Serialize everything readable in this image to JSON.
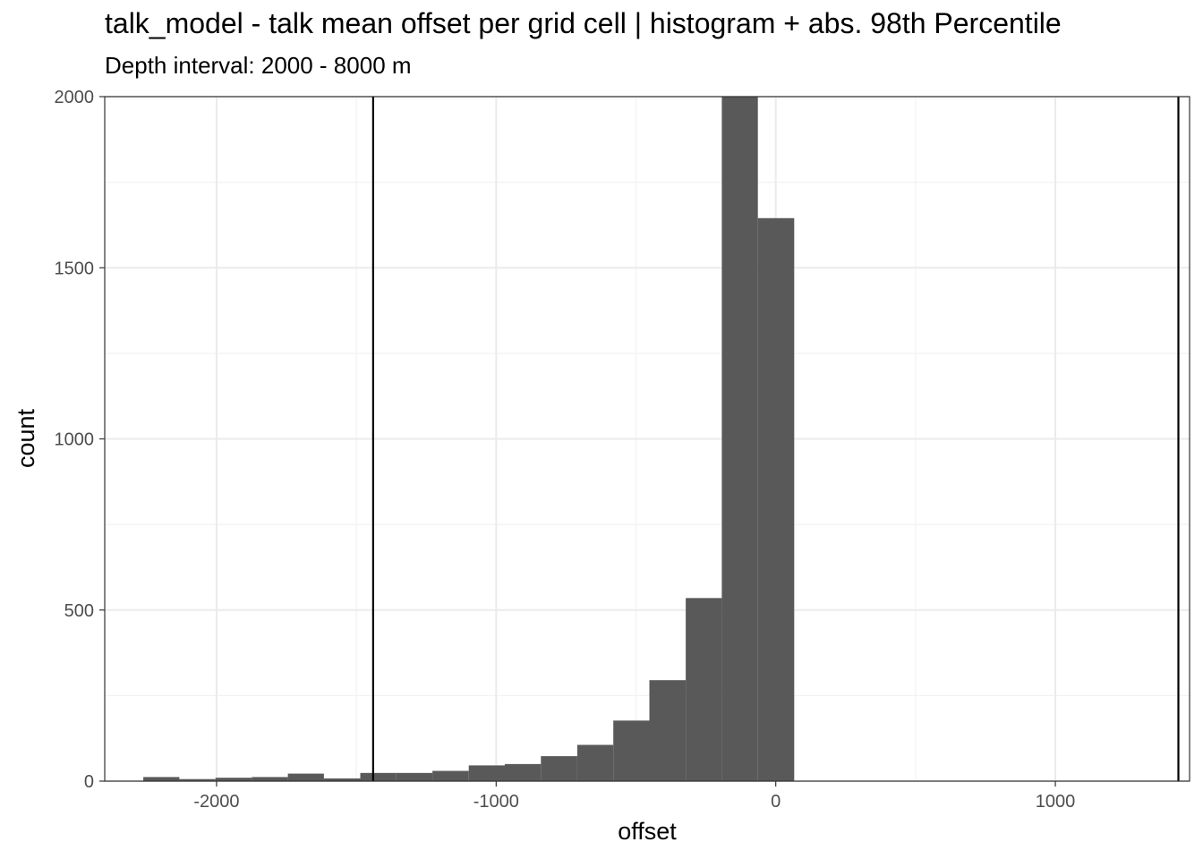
{
  "chart_data": {
    "type": "bar",
    "title": "talk_model  -  talk mean offset per grid cell | histogram + abs. 98th Percentile",
    "subtitle": "Depth interval: 2000 - 8000 m",
    "xlabel": "offset",
    "ylabel": "count",
    "xlim": [
      -2400,
      1480
    ],
    "ylim": [
      0,
      2000
    ],
    "x_ticks": [
      -2000,
      -1000,
      0,
      1000
    ],
    "x_tick_labels": [
      "-2000",
      "-1000",
      "0",
      "1000"
    ],
    "y_ticks": [
      0,
      500,
      1000,
      1500,
      2000
    ],
    "y_tick_labels": [
      "0",
      "500",
      "1000",
      "1500",
      "2000"
    ],
    "grid": true,
    "bin_width": 129.3,
    "bins": [
      {
        "x0": -2262,
        "x1": -2133,
        "count": 12
      },
      {
        "x0": -2133,
        "x1": -2004,
        "count": 6
      },
      {
        "x0": -2004,
        "x1": -1874,
        "count": 10
      },
      {
        "x0": -1874,
        "x1": -1745,
        "count": 12
      },
      {
        "x0": -1745,
        "x1": -1616,
        "count": 22
      },
      {
        "x0": -1616,
        "x1": -1486,
        "count": 8
      },
      {
        "x0": -1486,
        "x1": -1357,
        "count": 24
      },
      {
        "x0": -1357,
        "x1": -1228,
        "count": 24
      },
      {
        "x0": -1228,
        "x1": -1098,
        "count": 30
      },
      {
        "x0": -1098,
        "x1": -969,
        "count": 46
      },
      {
        "x0": -969,
        "x1": -840,
        "count": 50
      },
      {
        "x0": -840,
        "x1": -710,
        "count": 73
      },
      {
        "x0": -710,
        "x1": -581,
        "count": 106
      },
      {
        "x0": -581,
        "x1": -452,
        "count": 177
      },
      {
        "x0": -452,
        "x1": -322,
        "count": 295
      },
      {
        "x0": -322,
        "x1": -193,
        "count": 535
      },
      {
        "x0": -193,
        "x1": -64,
        "count": 2000
      },
      {
        "x0": -64,
        "x1": 66,
        "count": 1645
      }
    ],
    "vlines": [
      -1440,
      1440
    ]
  }
}
